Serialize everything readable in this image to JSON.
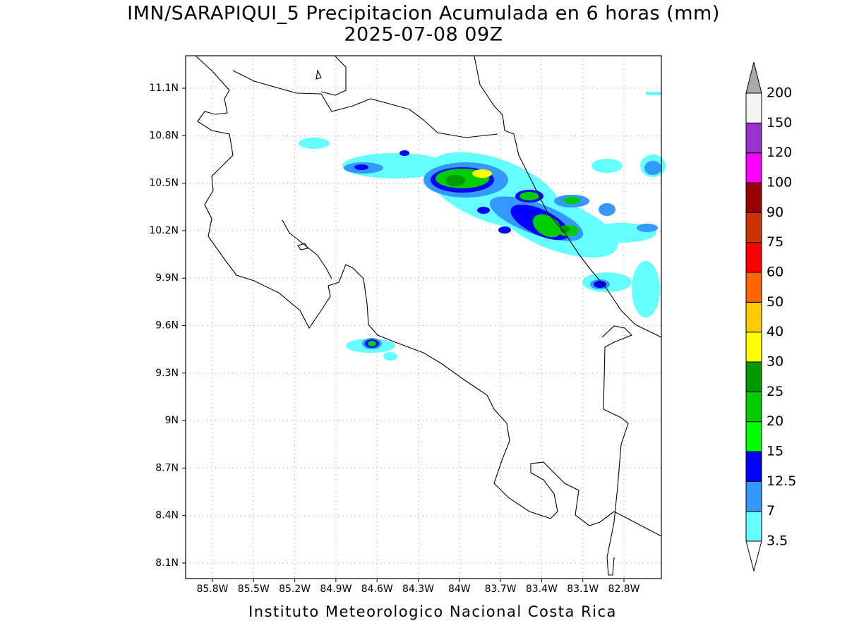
{
  "map": {
    "title": "IMN/SARAPIQUI_5 Precipitacion Acumulada en 6 horas (mm)",
    "subtitle": "2025-07-08 09Z",
    "lon_labels": [
      "85.8W",
      "85.5W",
      "85.2W",
      "84.9W",
      "84.6W",
      "84.3W",
      "84W",
      "83.7W",
      "83.4W",
      "83.1W",
      "82.8W"
    ],
    "lat_labels": [
      "11.1N",
      "10.8N",
      "10.5N",
      "10.2N",
      "9.9N",
      "9.6N",
      "9.3N",
      "9N",
      "8.7N",
      "8.4N",
      "8.1N"
    ],
    "colorbar": {
      "labels": [
        "3.5",
        "7",
        "12.5",
        "15",
        "20",
        "25",
        "30",
        "40",
        "50",
        "60",
        "75",
        "90",
        "100",
        "120",
        "150",
        "200"
      ],
      "colors": [
        "#66ffff",
        "#3399ff",
        "#0000ff",
        "#00ff00",
        "#00cc00",
        "#009900",
        "#ffff00",
        "#ffcc00",
        "#ff6600",
        "#ff0000",
        "#cc3300",
        "#990000",
        "#ff00ff",
        "#9933cc",
        "#f4f4f4"
      ],
      "below_color": "#ffffff",
      "above_color": "#aaaaaa"
    },
    "footer": "Instituto Meteorologico Nacional Costa Rica"
  }
}
